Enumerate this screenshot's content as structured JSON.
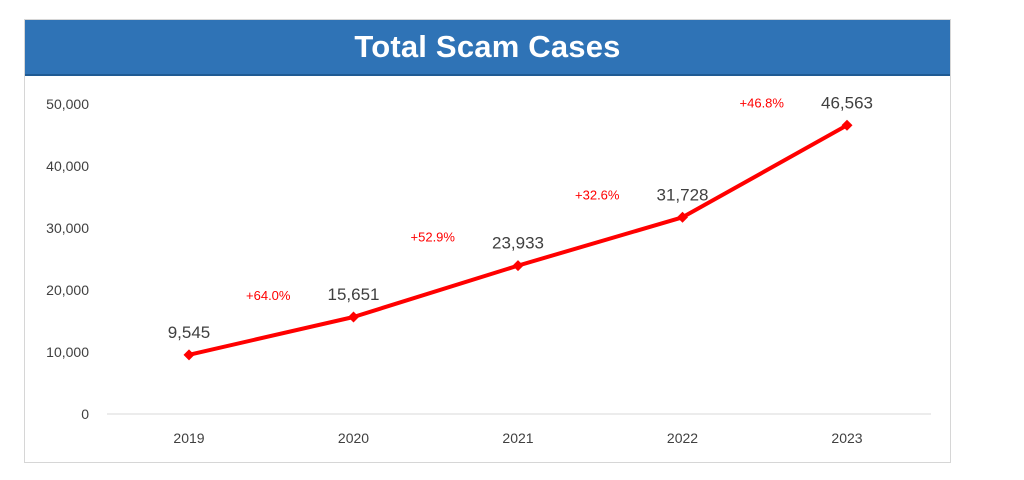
{
  "chart_data": {
    "type": "line",
    "title": "Total Scam Cases",
    "xlabel": "",
    "ylabel": "",
    "categories": [
      "2019",
      "2020",
      "2021",
      "2022",
      "2023"
    ],
    "series": [
      {
        "values": [
          9545,
          15651,
          23933,
          31728,
          46563
        ]
      }
    ],
    "data_labels": [
      "9,545",
      "15,651",
      "23,933",
      "31,728",
      "46,563"
    ],
    "growth_labels": [
      "+64.0%",
      "+52.9%",
      "+32.6%",
      "+46.8%"
    ],
    "yticks": [
      0,
      10000,
      20000,
      30000,
      40000,
      50000
    ],
    "ytick_labels": [
      "0",
      "10,000",
      "20,000",
      "30,000",
      "40,000",
      "50,000"
    ],
    "ylim": [
      0,
      50000
    ],
    "grid": false,
    "legend": "none",
    "line_color": "#ff0000",
    "header_color": "#2f73b6"
  }
}
